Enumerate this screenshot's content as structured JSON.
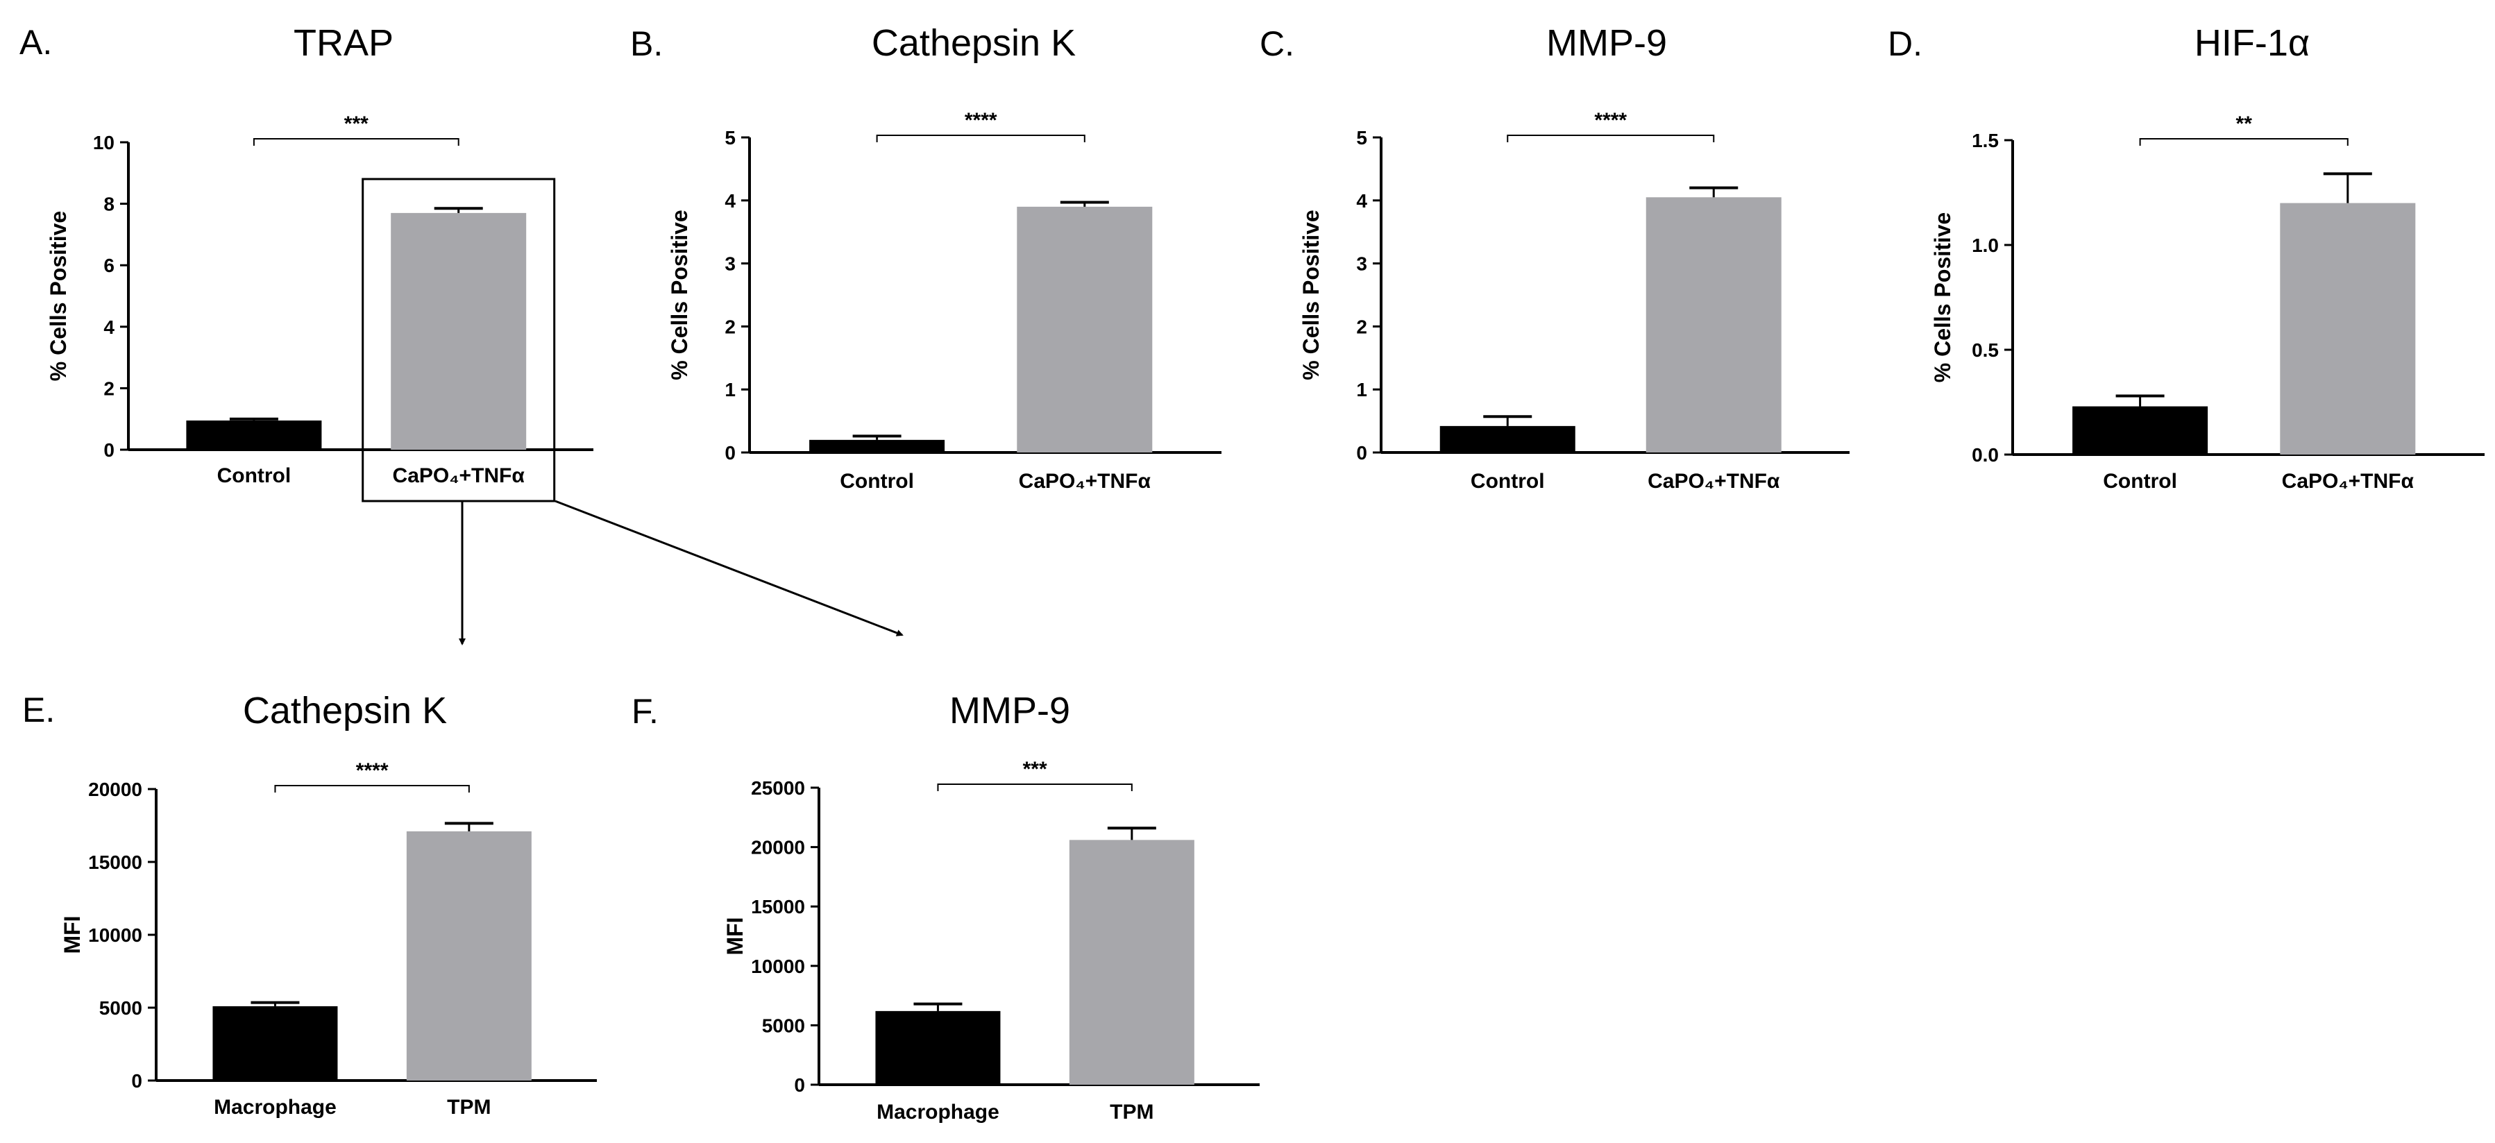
{
  "figure": {
    "highlight_box": {
      "panel_index": 0,
      "category_index": 1
    },
    "arrows": [
      {
        "from_panel": 0,
        "to_panel": 4
      },
      {
        "from_panel": 0,
        "to_panel": 5
      }
    ]
  },
  "colors": {
    "series_a": "#000000",
    "series_b": "#a7a7ab",
    "axis": "#000000",
    "ink": "#000000"
  },
  "chart_data": [
    {
      "panel": "A.",
      "type": "bar",
      "title": "TRAP",
      "ylabel": "% Cells Positive",
      "xlabel": "",
      "categories": [
        "Control",
        "CaPO₄+TNFα"
      ],
      "values": [
        0.95,
        7.7
      ],
      "errors": [
        0.05,
        0.15
      ],
      "ylim": [
        0,
        10
      ],
      "yticks": [
        "0",
        "2",
        "4",
        "6",
        "8",
        "10"
      ],
      "significance": "***"
    },
    {
      "panel": "B.",
      "type": "bar",
      "title": "Cathepsin K",
      "ylabel": "% Cells Positive",
      "xlabel": "",
      "categories": [
        "Control",
        "CaPO₄+TNFα"
      ],
      "values": [
        0.2,
        3.9
      ],
      "errors": [
        0.06,
        0.07
      ],
      "ylim": [
        0,
        5
      ],
      "yticks": [
        "0",
        "1",
        "2",
        "3",
        "4",
        "5"
      ],
      "significance": "****"
    },
    {
      "panel": "C.",
      "type": "bar",
      "title": "MMP-9",
      "ylabel": "% Cells Positive",
      "xlabel": "",
      "categories": [
        "Control",
        "CaPO₄+TNFα"
      ],
      "values": [
        0.42,
        4.05
      ],
      "errors": [
        0.15,
        0.15
      ],
      "ylim": [
        0,
        5
      ],
      "yticks": [
        "0",
        "1",
        "2",
        "3",
        "4",
        "5"
      ],
      "significance": "****"
    },
    {
      "panel": "D.",
      "type": "bar",
      "title": "HIF-1α",
      "ylabel": "% Cells Positive",
      "xlabel": "",
      "categories": [
        "Control",
        "CaPO₄+TNFα"
      ],
      "values": [
        0.23,
        1.2
      ],
      "errors": [
        0.05,
        0.14
      ],
      "ylim": [
        0,
        1.5
      ],
      "yticks": [
        "0.0",
        "0.5",
        "1.0",
        "1.5"
      ],
      "significance": "**"
    },
    {
      "panel": "E.",
      "type": "bar",
      "title": "Cathepsin K",
      "ylabel": "MFI",
      "xlabel": "",
      "categories": [
        "Macrophage",
        "TPM"
      ],
      "values": [
        5100,
        17100
      ],
      "errors": [
        250,
        550
      ],
      "ylim": [
        0,
        20000
      ],
      "yticks": [
        "0",
        "5000",
        "10000",
        "15000",
        "20000"
      ],
      "significance": "****"
    },
    {
      "panel": "F.",
      "type": "bar",
      "title": "MMP-9",
      "ylabel": "MFI",
      "xlabel": "",
      "categories": [
        "Macrophage",
        "TPM"
      ],
      "values": [
        6200,
        20600
      ],
      "errors": [
        600,
        1000
      ],
      "ylim": [
        0,
        25000
      ],
      "yticks": [
        "0",
        "5000",
        "10000",
        "15000",
        "20000",
        "25000"
      ],
      "significance": "***"
    }
  ]
}
